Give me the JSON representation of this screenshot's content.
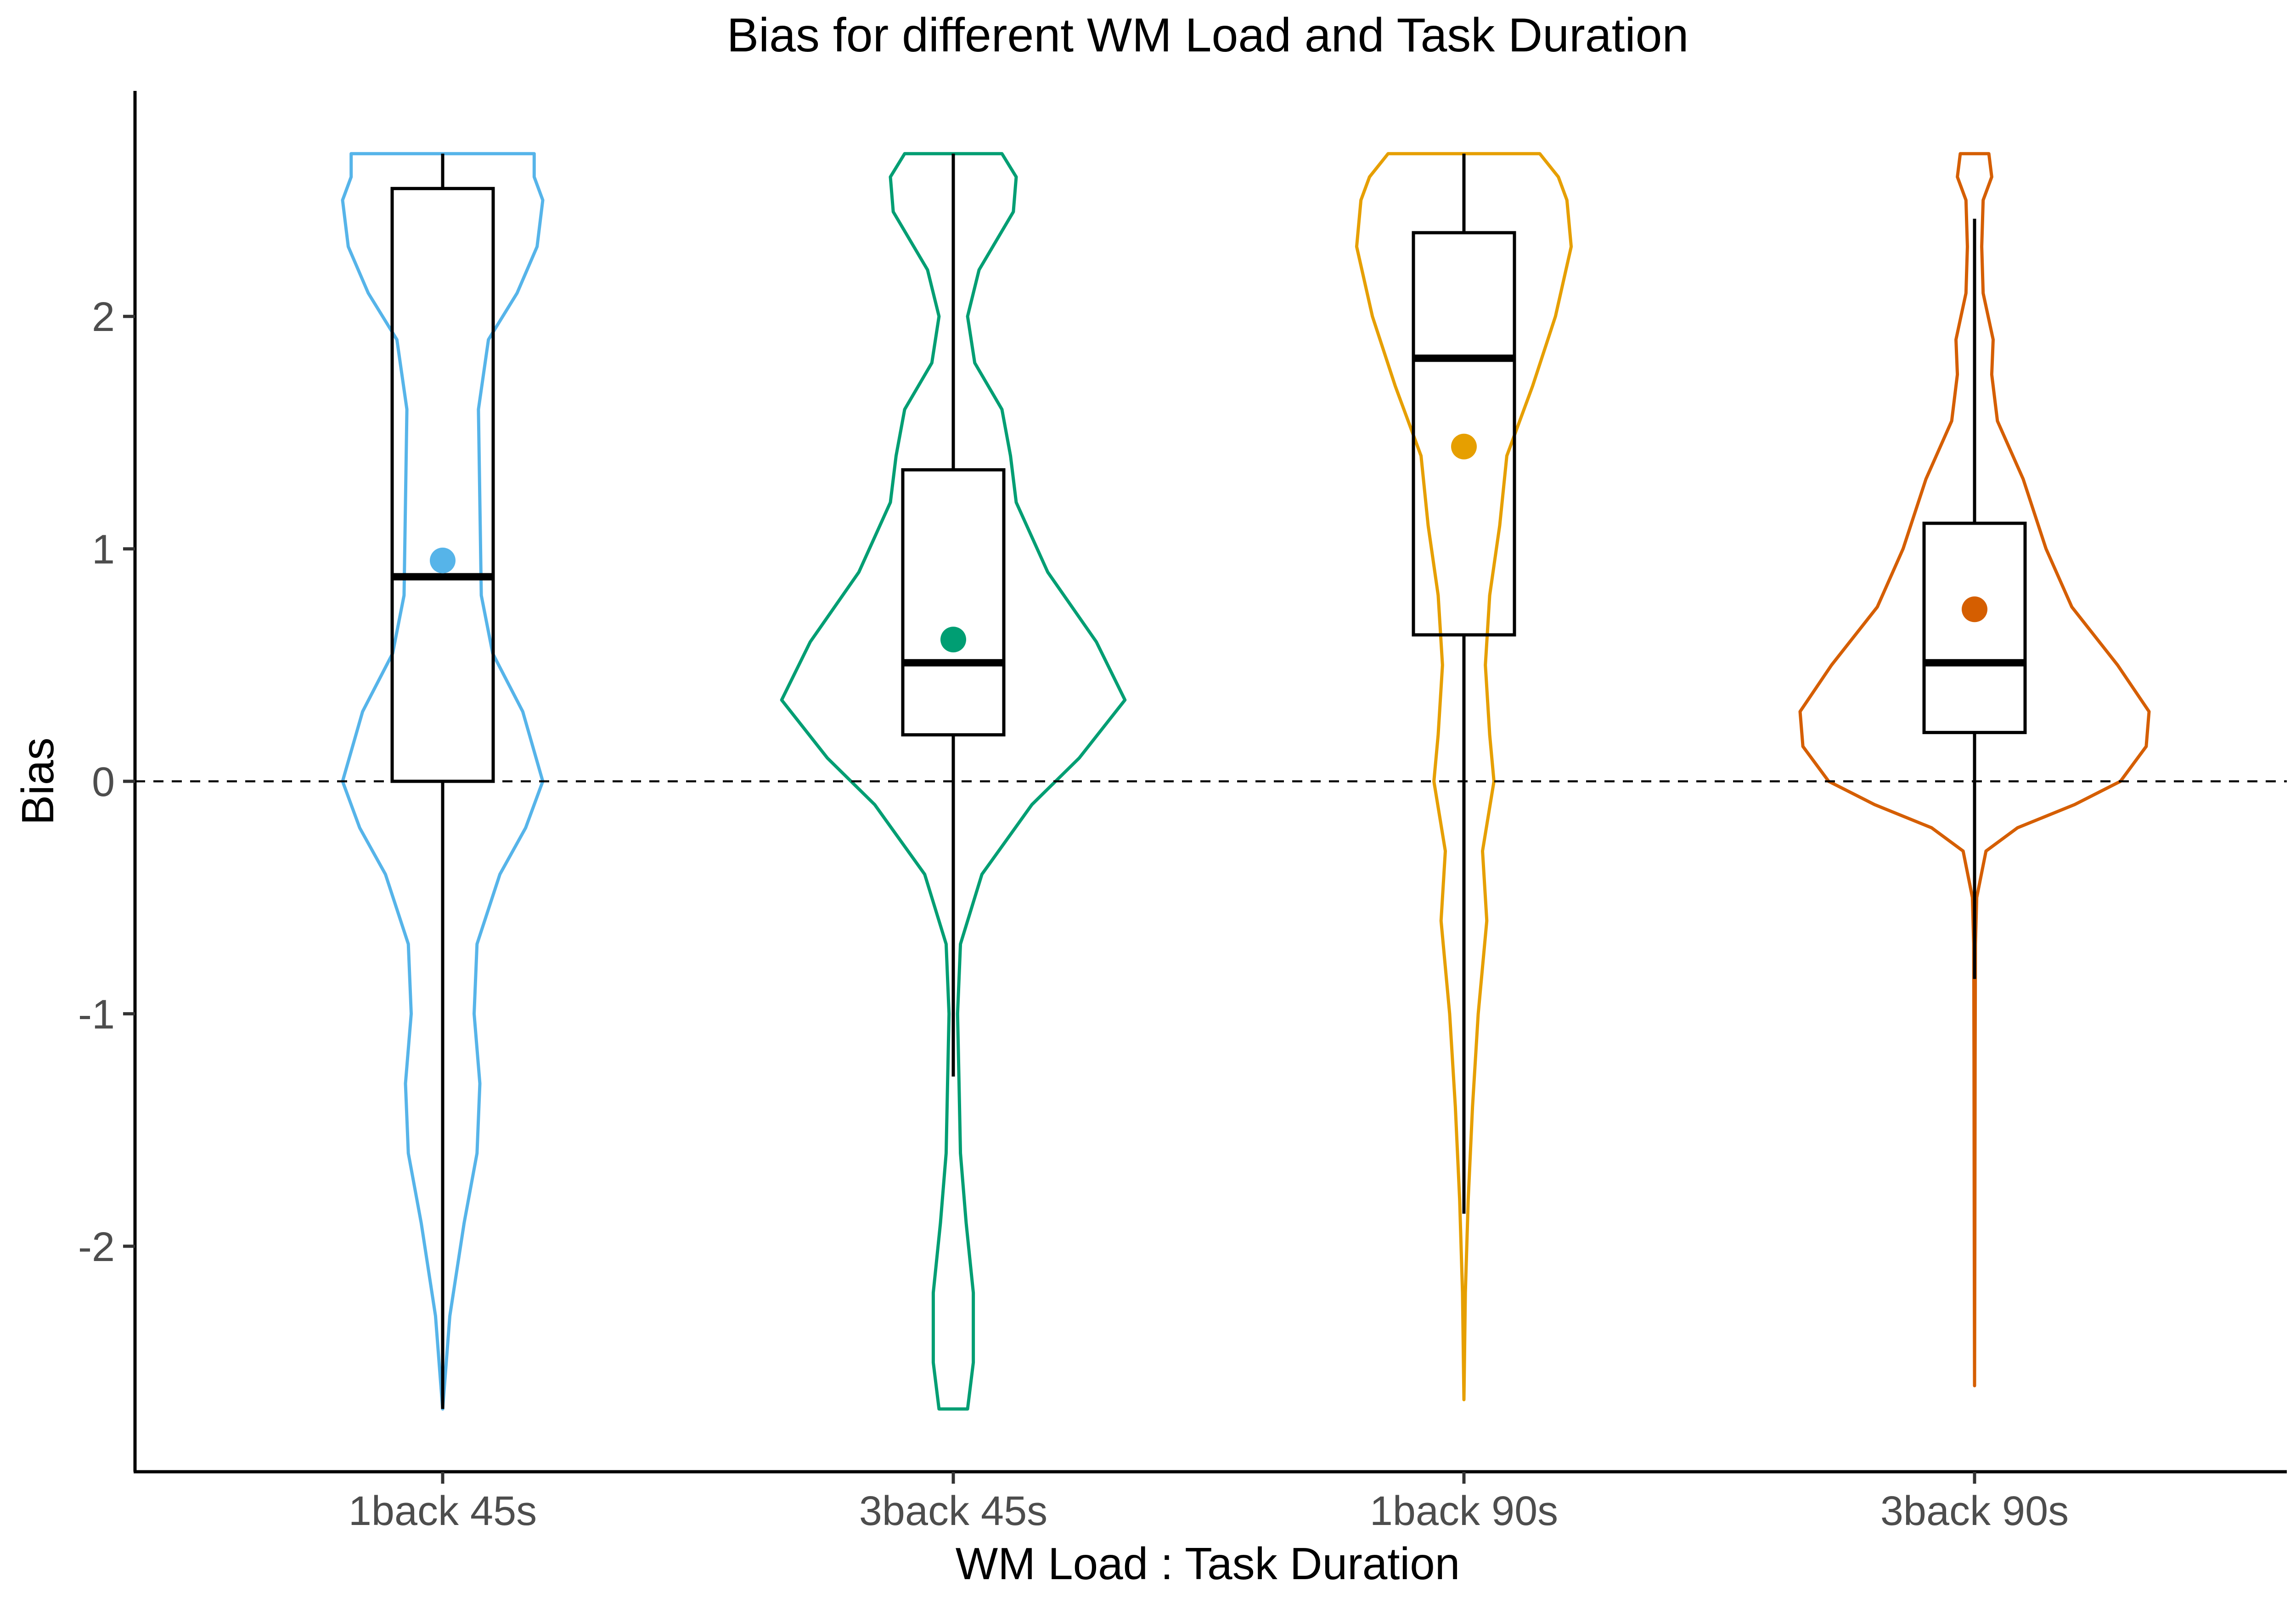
{
  "chart_data": {
    "type": "violin",
    "title": "Bias for different WM Load and Task Duration",
    "xlabel": "WM Load : Task Duration",
    "ylabel": "Bias",
    "ylim": [
      -2.97,
      2.97
    ],
    "yticks": [
      "-2",
      "-1",
      "0",
      "1",
      "2"
    ],
    "ytick_values": [
      -2,
      -1,
      0,
      1,
      2
    ],
    "reference_line": {
      "y": 0,
      "style": "dashed"
    },
    "grid": false,
    "legend": "none",
    "categories": [
      "1back 45s",
      "3back 45s",
      "1back 90s",
      "3back 90s"
    ],
    "groups": [
      {
        "category": "1back 45s",
        "color": "#56B4E9",
        "mean": 0.95,
        "box": {
          "q1": 0.0,
          "median": 0.88,
          "q3": 2.55,
          "whisker_low": -2.7,
          "whisker_high": 2.7
        },
        "density": [
          [
            -2.7,
            0.0
          ],
          [
            -2.3,
            0.05
          ],
          [
            -1.9,
            0.15
          ],
          [
            -1.6,
            0.24
          ],
          [
            -1.3,
            0.26
          ],
          [
            -1.0,
            0.22
          ],
          [
            -0.7,
            0.24
          ],
          [
            -0.4,
            0.4
          ],
          [
            -0.2,
            0.58
          ],
          [
            0.0,
            0.7
          ],
          [
            0.3,
            0.56
          ],
          [
            0.55,
            0.35
          ],
          [
            0.8,
            0.27
          ],
          [
            1.2,
            0.26
          ],
          [
            1.6,
            0.25
          ],
          [
            1.9,
            0.32
          ],
          [
            2.1,
            0.52
          ],
          [
            2.3,
            0.66
          ],
          [
            2.5,
            0.7
          ],
          [
            2.6,
            0.64
          ],
          [
            2.7,
            0.64
          ]
        ]
      },
      {
        "category": "3back 45s",
        "color": "#009E73",
        "mean": 0.61,
        "box": {
          "q1": 0.2,
          "median": 0.51,
          "q3": 1.34,
          "whisker_low": -1.27,
          "whisker_high": 2.7
        },
        "density": [
          [
            -2.7,
            0.1
          ],
          [
            -2.5,
            0.14
          ],
          [
            -2.2,
            0.14
          ],
          [
            -1.9,
            0.09
          ],
          [
            -1.6,
            0.05
          ],
          [
            -1.3,
            0.04
          ],
          [
            -1.0,
            0.03
          ],
          [
            -0.7,
            0.05
          ],
          [
            -0.4,
            0.2
          ],
          [
            -0.1,
            0.55
          ],
          [
            0.1,
            0.88
          ],
          [
            0.35,
            1.2
          ],
          [
            0.6,
            1.0
          ],
          [
            0.9,
            0.66
          ],
          [
            1.2,
            0.44
          ],
          [
            1.4,
            0.4
          ],
          [
            1.6,
            0.34
          ],
          [
            1.8,
            0.15
          ],
          [
            2.0,
            0.1
          ],
          [
            2.2,
            0.18
          ],
          [
            2.45,
            0.42
          ],
          [
            2.6,
            0.44
          ],
          [
            2.7,
            0.34
          ]
        ]
      },
      {
        "category": "1back 90s",
        "color": "#E69F00",
        "mean": 1.44,
        "box": {
          "q1": 0.63,
          "median": 1.82,
          "q3": 2.36,
          "whisker_low": -1.86,
          "whisker_high": 2.7
        },
        "density": [
          [
            -2.66,
            0.0
          ],
          [
            -2.2,
            0.01
          ],
          [
            -1.8,
            0.03
          ],
          [
            -1.4,
            0.06
          ],
          [
            -1.0,
            0.1
          ],
          [
            -0.6,
            0.16
          ],
          [
            -0.3,
            0.13
          ],
          [
            0.0,
            0.21
          ],
          [
            0.2,
            0.18
          ],
          [
            0.5,
            0.15
          ],
          [
            0.8,
            0.18
          ],
          [
            1.1,
            0.25
          ],
          [
            1.4,
            0.3
          ],
          [
            1.7,
            0.48
          ],
          [
            2.0,
            0.64
          ],
          [
            2.3,
            0.75
          ],
          [
            2.5,
            0.72
          ],
          [
            2.6,
            0.66
          ],
          [
            2.7,
            0.53
          ]
        ]
      },
      {
        "category": "3back 90s",
        "color": "#D55E00",
        "mean": 0.74,
        "box": {
          "q1": 0.21,
          "median": 0.51,
          "q3": 1.11,
          "whisker_low": -0.85,
          "whisker_high": 2.42
        },
        "density": [
          [
            -2.6,
            0.0
          ],
          [
            -2.0,
            0.002
          ],
          [
            -1.2,
            0.004
          ],
          [
            -0.7,
            0.006
          ],
          [
            -0.5,
            0.015
          ],
          [
            -0.3,
            0.08
          ],
          [
            -0.2,
            0.3
          ],
          [
            -0.1,
            0.7
          ],
          [
            0.0,
            1.02
          ],
          [
            0.15,
            1.2
          ],
          [
            0.3,
            1.22
          ],
          [
            0.5,
            1.0
          ],
          [
            0.75,
            0.68
          ],
          [
            1.0,
            0.5
          ],
          [
            1.3,
            0.34
          ],
          [
            1.55,
            0.16
          ],
          [
            1.75,
            0.12
          ],
          [
            1.9,
            0.13
          ],
          [
            2.1,
            0.06
          ],
          [
            2.3,
            0.05
          ],
          [
            2.5,
            0.06
          ],
          [
            2.6,
            0.12
          ],
          [
            2.7,
            0.1
          ]
        ]
      }
    ]
  }
}
